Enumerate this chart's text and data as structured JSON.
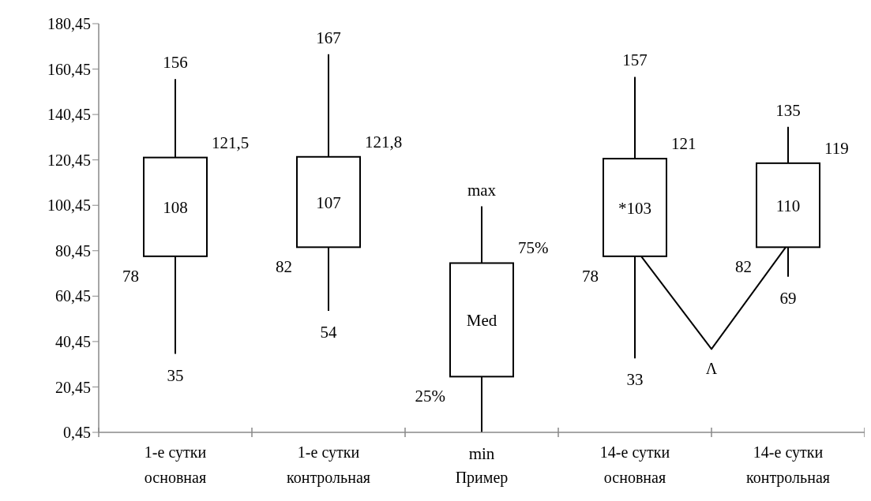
{
  "chart_data": {
    "type": "box",
    "color": "#000000",
    "categories": [
      "1-е сутки\nосновная",
      "1-е сутки\nконтрольная",
      "Пример",
      "14-е сутки\nосновная",
      "14-е сутки\nконтрольная"
    ],
    "boxes": [
      {
        "low": 35,
        "q1": 78,
        "q3": 121.5,
        "high": 156
      },
      {
        "low": 54,
        "q1": 82,
        "q3": 121.8,
        "high": 167
      },
      {
        "low": 0.45,
        "q1": 25,
        "q3": 75,
        "high": 100
      },
      {
        "low": 33,
        "q1": 78,
        "q3": 121,
        "high": 157
      },
      {
        "low": 69,
        "q1": 82,
        "q3": 119,
        "high": 135
      }
    ],
    "ylim": [
      0.45,
      180.45
    ],
    "yticks": [
      {
        "value": 0.45,
        "label": "0,45"
      },
      {
        "value": 20.45,
        "label": "20,45"
      },
      {
        "value": 40.45,
        "label": "40,45"
      },
      {
        "value": 60.45,
        "label": "60,45"
      },
      {
        "value": 80.45,
        "label": "80,45"
      },
      {
        "value": 100.45,
        "label": "100,45"
      },
      {
        "value": 120.45,
        "label": "120,45"
      },
      {
        "value": 140.45,
        "label": "140,45"
      },
      {
        "value": 160.45,
        "label": "160,45"
      },
      {
        "value": 180.45,
        "label": "180,45"
      }
    ],
    "annotations": [
      {
        "text": "156",
        "x": "1-е сутки\nосновная",
        "y": 156
      },
      {
        "text": "121,5",
        "x": "1-е сутки\nосновная",
        "y": 121.5
      },
      "108",
      {
        "text": "78",
        "x": "1-е сутки\nосновная",
        "y": 78
      },
      {
        "text": "35",
        "x": "1-е сутки\nосновная",
        "y": 35
      },
      {
        "text": "167",
        "x": "1-е сутки\nконтрольная",
        "y": 167
      },
      {
        "text": "121,8",
        "x": "1-е сутки\nконтрольная",
        "y": 121.8
      },
      "107",
      {
        "text": "82",
        "x": "1-е сутки\nконтрольная",
        "y": 82
      },
      {
        "text": "54",
        "x": "1-е сутки\nконтрольная",
        "y": 54
      },
      {
        "text": "max",
        "x": "Пример",
        "y": 100
      },
      {
        "text": "75%",
        "x": "Пример",
        "y": 75
      },
      "Med",
      {
        "text": "25%",
        "x": "Пример",
        "y": 25
      },
      {
        "text": "min",
        "x": "Пример",
        "y": 0.45
      },
      {
        "text": "157",
        "x": "14-е сутки\nосновная",
        "y": 157
      },
      {
        "text": "121",
        "x": "14-е сутки\nосновная",
        "y": 121
      },
      "*103",
      {
        "text": "78",
        "x": "14-е сутки\nосновная",
        "y": 78
      },
      {
        "text": "33",
        "x": "14-е сутки\nосновная",
        "y": 33
      },
      {
        "text": "135",
        "x": "14-е сутки\nконтрольная",
        "y": 135
      },
      {
        "text": "119",
        "x": "14-е сутки\nконтрольная",
        "y": 119
      },
      "110",
      {
        "text": "82",
        "x": "14-е сутки\nконтрольная",
        "y": 82
      },
      {
        "text": "69",
        "x": "14-е сутки\nконтрольная",
        "y": 69
      },
      "Λ"
    ]
  }
}
